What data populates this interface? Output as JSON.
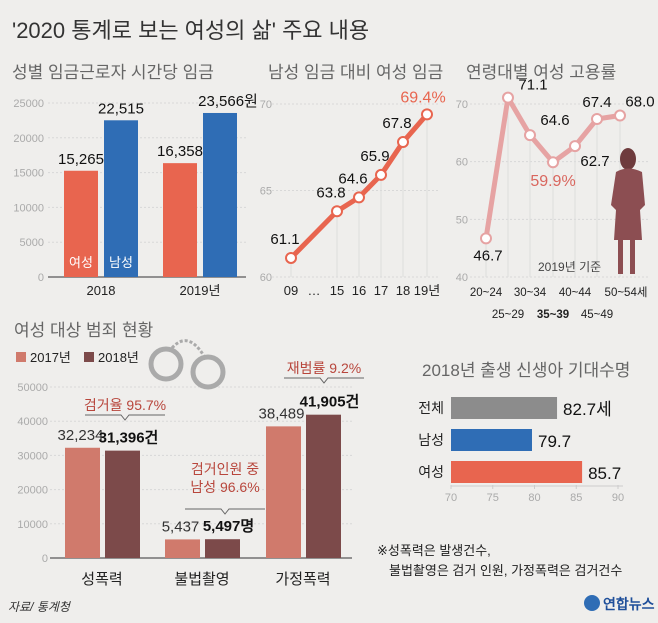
{
  "title": "'2020 통계로 보는 여성의 삶' 주요 내용",
  "source": "자료/ 통계청",
  "logo": "연합뉴스",
  "note_lines": [
    "※성폭력은 발생건수,",
    "불법촬영은 검거 인원, 가정폭력은 검거건수"
  ],
  "colors": {
    "female": "#e8654f",
    "male": "#2f6db5",
    "employment": "#e6a3a3",
    "crime2017": "#d07a6c",
    "crime2018": "#7c4a4a",
    "total": "#8c8c8c"
  },
  "chart_data": [
    {
      "type": "bar",
      "title": "성별 임금근로자 시간당 임금",
      "categories": [
        "2018",
        "2019년"
      ],
      "series": [
        {
          "name": "여성",
          "values": [
            15265,
            16358
          ],
          "labels": [
            "15,265",
            "16,358"
          ]
        },
        {
          "name": "남성",
          "values": [
            22515,
            23566
          ],
          "labels": [
            "22,515",
            "23,566원"
          ]
        }
      ],
      "ylim": [
        0,
        25000
      ],
      "yticks": [
        "0",
        "5000",
        "10000",
        "15000",
        "20000",
        "25000"
      ],
      "grid": true
    },
    {
      "type": "line",
      "title": "남성 임금 대비 여성 임금",
      "x": [
        "09",
        "15",
        "16",
        "17",
        "18",
        "19년"
      ],
      "axis_gap_label": "…",
      "values": [
        61.1,
        63.8,
        64.6,
        65.9,
        67.8,
        69.4
      ],
      "labels": [
        "61.1",
        "63.8",
        "64.6",
        "65.9",
        "67.8",
        "69.4%"
      ],
      "ylim": [
        60,
        70
      ],
      "yticks": [
        "60",
        "65",
        "70"
      ],
      "grid": true
    },
    {
      "type": "line",
      "title": "연령대별 여성 고용률",
      "x": [
        "20~24",
        "25~29",
        "30~34",
        "35~39",
        "40~44",
        "45~49",
        "50~54세"
      ],
      "values": [
        46.7,
        71.1,
        64.6,
        59.9,
        62.7,
        67.4,
        68.0
      ],
      "labels": [
        "46.7",
        "71.1",
        "64.6",
        "59.9%",
        "62.7",
        "67.4",
        "68.0"
      ],
      "ylim": [
        40,
        70
      ],
      "yticks": [
        "40",
        "50",
        "60",
        "70"
      ],
      "annotation": "2019년 기준",
      "grid": true
    },
    {
      "type": "bar",
      "title": "여성 대상 범죄 현황",
      "legend": [
        "2017년",
        "2018년"
      ],
      "legend_position": "top-left",
      "categories": [
        "성폭력",
        "불법촬영",
        "가정폭력"
      ],
      "series": [
        {
          "name": "2017년",
          "values": [
            32234,
            5437,
            38489
          ],
          "labels": [
            "32,234",
            "5,437",
            "38,489"
          ]
        },
        {
          "name": "2018년",
          "values": [
            31396,
            5497,
            41905
          ],
          "labels": [
            "31,396건",
            "5,497명",
            "41,905건"
          ]
        }
      ],
      "annotations": [
        [
          "검거율 95.7%"
        ],
        [
          "검거인원 중",
          "남성 96.6%"
        ],
        [
          "재범률 9.2%"
        ]
      ],
      "ylim": [
        0,
        50000
      ],
      "yticks": [
        "0",
        "10000",
        "20000",
        "30000",
        "40000",
        "50000"
      ],
      "grid": true
    },
    {
      "type": "bar",
      "orientation": "horizontal",
      "title": "2018년 출생 신생아 기대수명",
      "categories": [
        "전체",
        "남성",
        "여성"
      ],
      "values": [
        82.7,
        79.7,
        85.7
      ],
      "labels": [
        "82.7세",
        "79.7",
        "85.7"
      ],
      "xlim": [
        70,
        90
      ],
      "xticks": [
        "70",
        "75",
        "80",
        "85",
        "90"
      ]
    }
  ]
}
